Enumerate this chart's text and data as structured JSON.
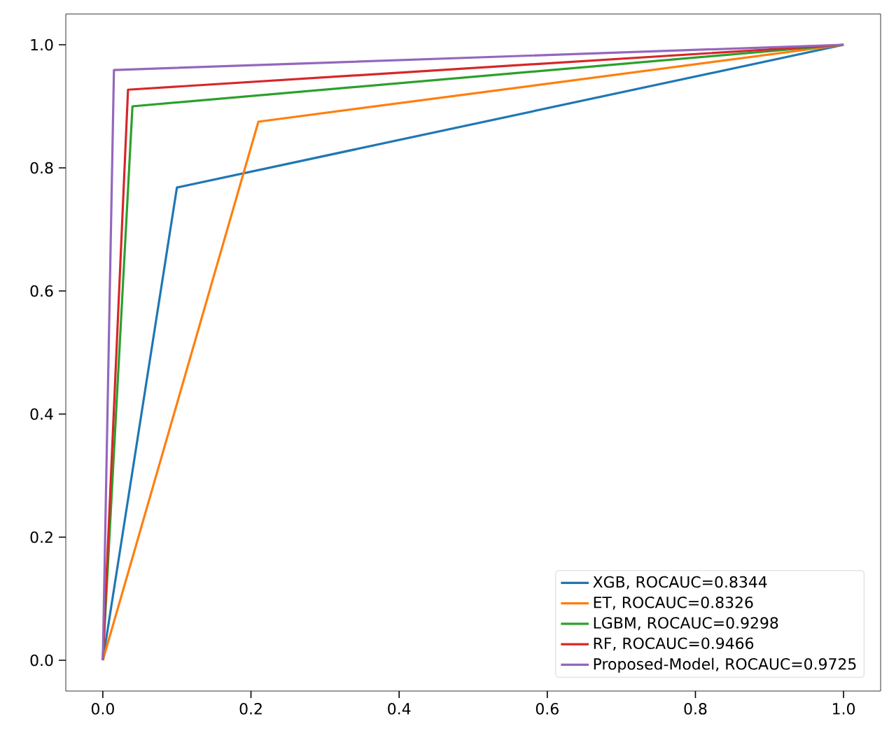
{
  "chart_data": {
    "type": "line",
    "legend": "bottom right",
    "xlim": [
      -0.05,
      1.05
    ],
    "ylim": [
      -0.05,
      1.05
    ],
    "xticks": [
      {
        "value": 0,
        "label": "0.0"
      },
      {
        "value": 0.2,
        "label": "0.2"
      },
      {
        "value": 0.4,
        "label": "0.4"
      },
      {
        "value": 0.6,
        "label": "0.6"
      },
      {
        "value": 0.8,
        "label": "0.8"
      },
      {
        "value": 1,
        "label": "1.0"
      }
    ],
    "yticks": [
      {
        "value": 0,
        "label": "0.0"
      },
      {
        "value": 0.2,
        "label": "0.2"
      },
      {
        "value": 0.4,
        "label": "0.4"
      },
      {
        "value": 0.6,
        "label": "0.6"
      },
      {
        "value": 0.8,
        "label": "0.8"
      },
      {
        "value": 1,
        "label": "1.0"
      }
    ],
    "series": [
      {
        "name": "XGB, ROCAUC=0.8344",
        "color": "#1f77b4",
        "x": [
          0,
          0.1,
          1
        ],
        "values": [
          0,
          0.768,
          1
        ]
      },
      {
        "name": "ET, ROCAUC=0.8326",
        "color": "#ff7f0e",
        "x": [
          0,
          0.21,
          1
        ],
        "values": [
          0,
          0.875,
          1
        ]
      },
      {
        "name": "LGBM, ROCAUC=0.9298",
        "color": "#2ca02c",
        "x": [
          0,
          0.04,
          1
        ],
        "values": [
          0,
          0.9,
          1
        ]
      },
      {
        "name": "RF, ROCAUC=0.9466",
        "color": "#d62728",
        "x": [
          0,
          0.034,
          1
        ],
        "values": [
          0,
          0.927,
          1
        ]
      },
      {
        "name": "Proposed-Model, ROCAUC=0.9725",
        "color": "#9467bd",
        "x": [
          0,
          0.015,
          1
        ],
        "values": [
          0,
          0.959,
          1
        ]
      }
    ]
  }
}
